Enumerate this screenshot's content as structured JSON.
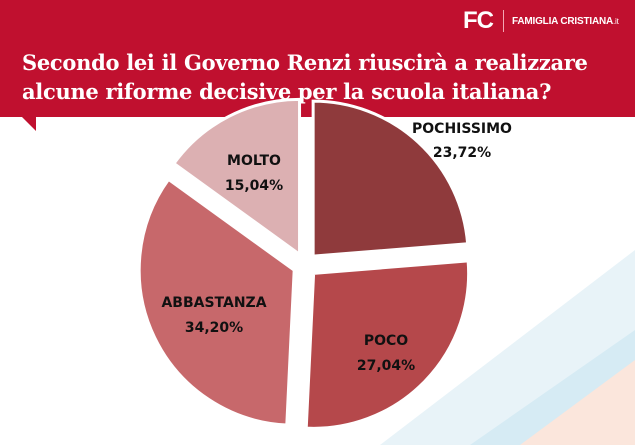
{
  "brand": {
    "mark": "FC",
    "name": "FAMIGLIA CRISTIANA",
    "suffix": ".it"
  },
  "title_line1": "Secondo lei il Governo Renzi riuscirà a realizzare",
  "title_line2": "alcune riforme decisive per la scuola italiana?",
  "colors": {
    "header": "#c0102f"
  },
  "chart_data": {
    "type": "pie",
    "exploded": true,
    "start": "top, clockwise",
    "slices": [
      {
        "label": "POCHISSIMO",
        "value_text": "23,72%",
        "value": 23.72,
        "color": "#8f3a3c"
      },
      {
        "label": "POCO",
        "value_text": "27,04%",
        "value": 27.04,
        "color": "#b5484b"
      },
      {
        "label": "ABBASTANZA",
        "value_text": "34,20%",
        "value": 34.2,
        "color": "#c7686b"
      },
      {
        "label": "MOLTO",
        "value_text": "15,04%",
        "value": 15.04,
        "color": "#dcb0b2"
      }
    ]
  }
}
